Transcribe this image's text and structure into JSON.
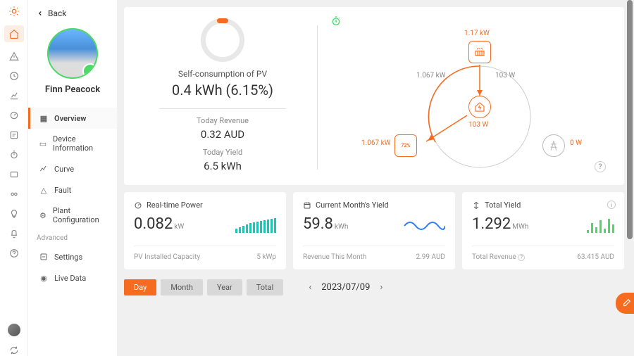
{
  "back_label": "Back",
  "profile": {
    "name": "Finn Peacock"
  },
  "menu": {
    "items": [
      {
        "label": "Overview"
      },
      {
        "label": "Device Information"
      },
      {
        "label": "Curve"
      },
      {
        "label": "Fault"
      },
      {
        "label": "Plant Configuration"
      }
    ],
    "advanced_label": "Advanced",
    "advanced": [
      {
        "label": "Settings"
      },
      {
        "label": "Live Data"
      }
    ]
  },
  "self_consumption": {
    "label": "Self-consumption of PV",
    "value": "0.4 kWh (6.15%)",
    "ring_pct": 6.15
  },
  "today_revenue": {
    "label": "Today Revenue",
    "value": "0.32 AUD"
  },
  "today_yield": {
    "label": "Today Yield",
    "value": "6.5 kWh"
  },
  "diagram": {
    "pv": "1.17 kW",
    "home": "103 W",
    "battery": "1.067 kW",
    "grid": "0 W",
    "pv_home": "103 W",
    "pv_bat": "1.067 kW",
    "bat_pct": "72%"
  },
  "stats": {
    "realtime": {
      "title": "Real-time Power",
      "value": "0.082",
      "unit": "kW",
      "sub_label": "PV Installed Capacity",
      "sub_value": "5 kWp",
      "bars": [
        6,
        8,
        10,
        12,
        14,
        15,
        16,
        17,
        18,
        19,
        20,
        21
      ]
    },
    "month": {
      "title": "Current Month's Yield",
      "value": "59.8",
      "unit": "kWh",
      "sub_label": "Revenue This Month",
      "sub_value": "2.99 AUD"
    },
    "total": {
      "title": "Total Yield",
      "value": "1.292",
      "unit": "MWh",
      "sub_label": "Total Revenue",
      "sub_value": "63.415 AUD",
      "bars": [
        4,
        14,
        8,
        18,
        6,
        20,
        12
      ]
    }
  },
  "tabs": {
    "items": [
      "Day",
      "Month",
      "Year",
      "Total"
    ],
    "active": 0
  },
  "date": "2023/07/09",
  "colors": {
    "accent": "#f56c21",
    "green": "#4cd964",
    "teal": "#1bc6b4",
    "blue": "#2d7ff9"
  }
}
